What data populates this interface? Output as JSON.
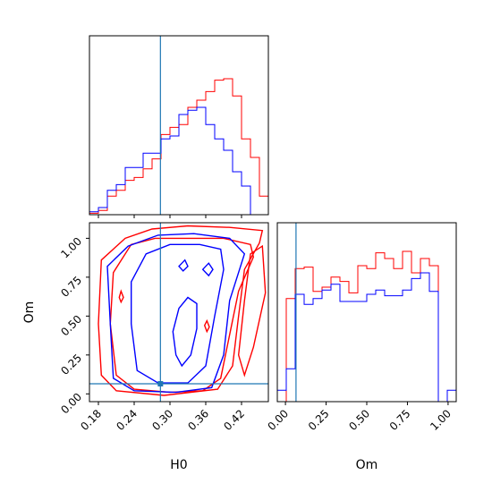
{
  "chart_data": [
    {
      "panel": "H0 marginal histogram",
      "type": "line",
      "drawstyle": "steps-mid",
      "xlim": [
        0.165,
        0.465
      ],
      "x_bin_centers": [
        0.1725,
        0.1875,
        0.2025,
        0.2175,
        0.2325,
        0.2475,
        0.2625,
        0.2775,
        0.2925,
        0.3075,
        0.3225,
        0.3375,
        0.3525,
        0.3675,
        0.3825,
        0.3975,
        0.4125,
        0.4275,
        0.4425,
        0.4575
      ],
      "series": [
        {
          "color": "#ff0000",
          "values": [
            0.01,
            0.03,
            0.13,
            0.17,
            0.24,
            0.26,
            0.32,
            0.39,
            0.56,
            0.61,
            0.63,
            0.75,
            0.8,
            0.86,
            0.94,
            0.95,
            0.83,
            0.53,
            0.4,
            0.13
          ]
        },
        {
          "color": "#0000ff",
          "values": [
            0.02,
            0.05,
            0.17,
            0.21,
            0.33,
            0.33,
            0.43,
            0.43,
            0.53,
            0.55,
            0.7,
            0.73,
            0.75,
            0.63,
            0.53,
            0.45,
            0.3,
            0.2,
            0.0,
            0.0
          ]
        }
      ],
      "truth_line": {
        "axis": "x",
        "value": 0.284,
        "color": "#1f77b4"
      }
    },
    {
      "panel": "H0 vs Om contours",
      "type": "line",
      "xlabel": "H0",
      "ylabel": "Om",
      "xlim": [
        0.165,
        0.465
      ],
      "ylim": [
        -0.05,
        1.1
      ],
      "xticks": [
        "0.18",
        "0.24",
        "0.30",
        "0.36",
        "0.42"
      ],
      "yticks": [
        "0.00",
        "0.25",
        "0.50",
        "0.75",
        "1.00"
      ],
      "series": [
        {
          "color": "#ff0000",
          "contours": [
            [
              [
                0.185,
                0.86
              ],
              [
                0.225,
                1.0
              ],
              [
                0.27,
                1.06
              ],
              [
                0.33,
                1.08
              ],
              [
                0.4,
                1.07
              ],
              [
                0.455,
                1.05
              ],
              [
                0.45,
                0.97
              ],
              [
                0.425,
                0.8
              ],
              [
                0.415,
                0.5
              ],
              [
                0.405,
                0.18
              ],
              [
                0.38,
                0.03
              ],
              [
                0.29,
                -0.01
              ],
              [
                0.21,
                0.02
              ],
              [
                0.185,
                0.12
              ],
              [
                0.18,
                0.45
              ],
              [
                0.185,
                0.86
              ]
            ],
            [
              [
                0.205,
                0.78
              ],
              [
                0.235,
                0.96
              ],
              [
                0.275,
                1.0
              ],
              [
                0.33,
                1.0
              ],
              [
                0.39,
                1.0
              ],
              [
                0.435,
                0.96
              ],
              [
                0.44,
                0.88
              ],
              [
                0.415,
                0.66
              ],
              [
                0.4,
                0.38
              ],
              [
                0.385,
                0.1
              ],
              [
                0.355,
                0.02
              ],
              [
                0.3,
                0.01
              ],
              [
                0.24,
                0.03
              ],
              [
                0.21,
                0.12
              ],
              [
                0.2,
                0.45
              ],
              [
                0.205,
                0.78
              ]
            ],
            [
              [
                0.435,
                0.9
              ],
              [
                0.455,
                0.95
              ],
              [
                0.46,
                0.65
              ],
              [
                0.44,
                0.3
              ],
              [
                0.425,
                0.12
              ],
              [
                0.415,
                0.25
              ],
              [
                0.425,
                0.6
              ],
              [
                0.435,
                0.9
              ]
            ],
            [
              [
                0.215,
                0.62
              ],
              [
                0.218,
                0.66
              ],
              [
                0.222,
                0.62
              ],
              [
                0.218,
                0.59
              ],
              [
                0.215,
                0.62
              ]
            ],
            [
              [
                0.358,
                0.44
              ],
              [
                0.362,
                0.47
              ],
              [
                0.366,
                0.43
              ],
              [
                0.362,
                0.4
              ],
              [
                0.358,
                0.44
              ]
            ]
          ]
        },
        {
          "color": "#0000ff",
          "contours": [
            [
              [
                0.195,
                0.82
              ],
              [
                0.23,
                0.95
              ],
              [
                0.28,
                1.02
              ],
              [
                0.34,
                1.03
              ],
              [
                0.4,
                1.0
              ],
              [
                0.425,
                0.9
              ],
              [
                0.4,
                0.6
              ],
              [
                0.39,
                0.25
              ],
              [
                0.37,
                0.04
              ],
              [
                0.31,
                0.01
              ],
              [
                0.24,
                0.02
              ],
              [
                0.205,
                0.1
              ],
              [
                0.2,
                0.45
              ],
              [
                0.195,
                0.82
              ]
            ],
            [
              [
                0.235,
                0.72
              ],
              [
                0.26,
                0.9
              ],
              [
                0.3,
                0.96
              ],
              [
                0.35,
                0.96
              ],
              [
                0.385,
                0.93
              ],
              [
                0.39,
                0.8
              ],
              [
                0.375,
                0.5
              ],
              [
                0.36,
                0.18
              ],
              [
                0.33,
                0.07
              ],
              [
                0.28,
                0.07
              ],
              [
                0.245,
                0.15
              ],
              [
                0.235,
                0.45
              ],
              [
                0.235,
                0.72
              ]
            ],
            [
              [
                0.305,
                0.4
              ],
              [
                0.315,
                0.55
              ],
              [
                0.33,
                0.62
              ],
              [
                0.345,
                0.58
              ],
              [
                0.345,
                0.42
              ],
              [
                0.335,
                0.25
              ],
              [
                0.32,
                0.18
              ],
              [
                0.31,
                0.25
              ],
              [
                0.305,
                0.4
              ]
            ],
            [
              [
                0.355,
                0.8
              ],
              [
                0.365,
                0.84
              ],
              [
                0.372,
                0.8
              ],
              [
                0.365,
                0.76
              ],
              [
                0.355,
                0.8
              ]
            ],
            [
              [
                0.315,
                0.82
              ],
              [
                0.325,
                0.86
              ],
              [
                0.33,
                0.82
              ],
              [
                0.322,
                0.79
              ],
              [
                0.315,
                0.82
              ]
            ]
          ]
        }
      ],
      "truth_lines": [
        {
          "axis": "x",
          "value": 0.284,
          "color": "#1f77b4"
        },
        {
          "axis": "y",
          "value": 0.065,
          "color": "#1f77b4"
        }
      ]
    },
    {
      "panel": "Om marginal histogram",
      "type": "line",
      "drawstyle": "steps-mid",
      "xlabel": "Om",
      "xlim": [
        -0.05,
        1.05
      ],
      "xticks": [
        "0.00",
        "0.25",
        "0.50",
        "0.75",
        "1.00"
      ],
      "x_bin_centers": [
        -0.0225,
        0.0325,
        0.0875,
        0.1425,
        0.1975,
        0.2525,
        0.3075,
        0.3625,
        0.4175,
        0.4725,
        0.5275,
        0.5825,
        0.6375,
        0.6925,
        0.7475,
        0.8025,
        0.8575,
        0.9125,
        0.9675,
        1.0225
      ],
      "series": [
        {
          "color": "#ff0000",
          "values": [
            0.0,
            0.72,
            0.93,
            0.94,
            0.77,
            0.8,
            0.87,
            0.84,
            0.76,
            0.95,
            0.93,
            1.04,
            1.0,
            0.93,
            1.05,
            0.9,
            1.0,
            0.95,
            0.0,
            0.0
          ]
        },
        {
          "color": "#0000ff",
          "values": [
            0.08,
            0.23,
            0.75,
            0.68,
            0.72,
            0.78,
            0.82,
            0.7,
            0.7,
            0.7,
            0.75,
            0.78,
            0.74,
            0.74,
            0.78,
            0.86,
            0.9,
            0.77,
            0.0,
            0.08
          ]
        }
      ],
      "truth_line": {
        "axis": "x",
        "value": 0.065,
        "color": "#1f77b4"
      }
    }
  ]
}
